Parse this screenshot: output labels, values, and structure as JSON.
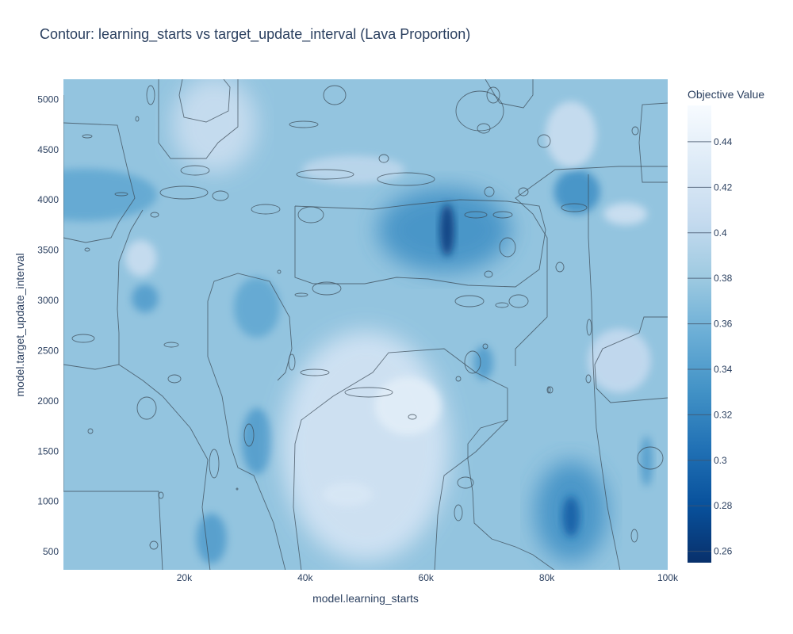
{
  "chart_data": {
    "type": "contour",
    "title": "Contour: learning_starts vs target_update_interval (Lava Proportion)",
    "xlabel": "model.learning_starts",
    "ylabel": "model.target_update_interval",
    "xlim": [
      0,
      100000
    ],
    "ylim": [
      320,
      5200
    ],
    "x_ticks": [
      {
        "value": 20000,
        "label": "20k"
      },
      {
        "value": 40000,
        "label": "40k"
      },
      {
        "value": 60000,
        "label": "60k"
      },
      {
        "value": 80000,
        "label": "80k"
      },
      {
        "value": 100000,
        "label": "100k"
      }
    ],
    "y_ticks": [
      {
        "value": 500,
        "label": "500"
      },
      {
        "value": 1000,
        "label": "1000"
      },
      {
        "value": 1500,
        "label": "1500"
      },
      {
        "value": 2000,
        "label": "2000"
      },
      {
        "value": 2500,
        "label": "2500"
      },
      {
        "value": 3000,
        "label": "3000"
      },
      {
        "value": 3500,
        "label": "3500"
      },
      {
        "value": 4000,
        "label": "4000"
      },
      {
        "value": 4500,
        "label": "4500"
      },
      {
        "value": 5000,
        "label": "5000"
      }
    ],
    "colorbar": {
      "title": "Objective Value",
      "range": [
        0.255,
        0.456
      ],
      "ticks": [
        0.26,
        0.28,
        0.3,
        0.32,
        0.34,
        0.36,
        0.38,
        0.4,
        0.42,
        0.44
      ],
      "tick_labels": [
        "0.26",
        "0.28",
        "0.3",
        "0.32",
        "0.34",
        "0.36",
        "0.38",
        "0.4",
        "0.42",
        "0.44"
      ],
      "colorscale": [
        "#08306b",
        "#08519c",
        "#2171b5",
        "#4292c6",
        "#6baed6",
        "#9ecae1",
        "#c6dbef",
        "#deebf7",
        "#f7fbff"
      ]
    },
    "background_value": 0.375,
    "regions": [
      {
        "cx": 63000,
        "cy": 3700,
        "rx": 11000,
        "ry": 420,
        "value": 0.33
      },
      {
        "cx": 63500,
        "cy": 3700,
        "rx": 1200,
        "ry": 260,
        "value": 0.265
      },
      {
        "cx": 84000,
        "cy": 900,
        "rx": 6000,
        "ry": 500,
        "value": 0.33
      },
      {
        "cx": 84000,
        "cy": 850,
        "rx": 1400,
        "ry": 200,
        "value": 0.29
      },
      {
        "cx": 85000,
        "cy": 4080,
        "rx": 3800,
        "ry": 220,
        "value": 0.33
      },
      {
        "cx": 3500,
        "cy": 4050,
        "rx": 12000,
        "ry": 260,
        "value": 0.35
      },
      {
        "cx": 32000,
        "cy": 1600,
        "rx": 2500,
        "ry": 330,
        "value": 0.34
      },
      {
        "cx": 24500,
        "cy": 630,
        "rx": 2500,
        "ry": 250,
        "value": 0.34
      },
      {
        "cx": 32000,
        "cy": 2930,
        "rx": 3800,
        "ry": 300,
        "value": 0.35
      },
      {
        "cx": 13500,
        "cy": 3020,
        "rx": 2200,
        "ry": 140,
        "value": 0.34
      },
      {
        "cx": 69500,
        "cy": 2380,
        "rx": 1600,
        "ry": 170,
        "value": 0.34
      },
      {
        "cx": 96500,
        "cy": 1400,
        "rx": 1000,
        "ry": 250,
        "value": 0.34
      },
      {
        "cx": 50000,
        "cy": 1550,
        "rx": 14000,
        "ry": 1150,
        "value": 0.42
      },
      {
        "cx": 57000,
        "cy": 1950,
        "rx": 5500,
        "ry": 290,
        "value": 0.435
      },
      {
        "cx": 25000,
        "cy": 4750,
        "rx": 7000,
        "ry": 480,
        "value": 0.41
      },
      {
        "cx": 84000,
        "cy": 4650,
        "rx": 4200,
        "ry": 330,
        "value": 0.41
      },
      {
        "cx": 92000,
        "cy": 2400,
        "rx": 5200,
        "ry": 320,
        "value": 0.405
      },
      {
        "cx": 48000,
        "cy": 4300,
        "rx": 8500,
        "ry": 140,
        "value": 0.4
      },
      {
        "cx": 12800,
        "cy": 3420,
        "rx": 2600,
        "ry": 180,
        "value": 0.41
      },
      {
        "cx": 47000,
        "cy": 1070,
        "rx": 4200,
        "ry": 120,
        "value": 0.425
      },
      {
        "cx": 93000,
        "cy": 3860,
        "rx": 3600,
        "ry": 110,
        "value": 0.415
      }
    ],
    "contour_paths": [
      "M 80 120 L 80 620 L 200 620 L 205 720",
      "M 80 155 L 148 158 L 160 210 L 170 250 L 150 280 L 140 300 L 108 306 L 80 300",
      "M 200 100 L 200 180 L 215 200 L 260 200 L 275 180 L 300 160 L 300 100",
      "M 265 720 L 255 640 L 262 580 L 240 540 L 205 500 L 180 480 L 150 460 L 150 420 L 148 390 L 150 330 L 165 290 L 180 265",
      "M 360 720 L 345 660 L 320 600 L 300 590 L 290 560 L 280 500 L 262 450 L 262 380 L 270 355 L 300 345 L 340 355 L 365 400 L 368 440 L 360 470 L 350 480",
      "M 380 720 L 370 640 L 372 560 L 380 530 L 420 500 L 470 470 L 490 445 L 560 440 L 600 470 L 640 490 L 640 530 L 600 570 L 560 600 L 552 650 L 548 720",
      "M 372 260 L 372 350 L 395 358 L 460 358 L 500 350 L 540 352 L 590 360 L 650 362 L 680 340 L 688 290 L 680 260 L 640 254 L 580 252 L 520 258 L 470 264 L 420 262 L 372 260",
      "M 742 220 L 742 300 L 746 380 L 748 460 L 752 540 L 766 640 L 782 720",
      "M 842 130 L 810 132 L 806 180 L 810 230 L 842 230",
      "M 842 400 L 812 400 L 806 420 L 760 440 L 750 460 L 752 490 L 770 508 L 842 502",
      "M 700 720 L 672 700 L 650 690 L 620 680 L 598 660 L 596 620 L 590 580 L 590 560 L 606 540 L 640 530",
      "M 80 460 L 120 466 L 150 460",
      "M 612 100 L 630 130 L 660 136 L 672 120 L 672 100",
      "M 650 462 L 650 440 L 670 420 L 690 400 L 690 340 L 690 300 L 672 270 L 650 250 L 700 214 L 742 212 L 780 210 L 842 210",
      "M 230 100 L 226 120 L 232 148 L 260 154 L 288 140 L 290 110 L 282 100"
    ],
    "small_loops": [
      [
        465,
        495,
        30,
        6
      ],
      [
        605,
        140,
        30,
        25
      ],
      [
        190,
        120,
        5,
        12
      ],
      [
        422,
        120,
        14,
        12
      ],
      [
        622,
        120,
        8,
        10
      ],
      [
        686,
        178,
        8,
        8
      ],
      [
        610,
        162,
        8,
        6
      ],
      [
        383,
        157,
        18,
        4
      ],
      [
        410,
        220,
        36,
        6
      ],
      [
        512,
        226,
        36,
        8
      ],
      [
        484,
        200,
        6,
        5
      ],
      [
        246,
        215,
        18,
        6
      ],
      [
        232,
        243,
        30,
        8
      ],
      [
        278,
        247,
        10,
        6
      ],
      [
        335,
        264,
        18,
        6
      ],
      [
        392,
        271,
        16,
        10
      ],
      [
        600,
        271,
        14,
        4
      ],
      [
        634,
        271,
        12,
        4
      ],
      [
        617,
        242,
        6,
        6
      ],
      [
        660,
        242,
        6,
        5
      ],
      [
        724,
        262,
        16,
        5
      ],
      [
        640,
        312,
        10,
        12
      ],
      [
        616,
        346,
        5,
        4
      ],
      [
        412,
        364,
        18,
        8
      ],
      [
        592,
        380,
        18,
        7
      ],
      [
        633,
        385,
        8,
        3
      ],
      [
        654,
        380,
        12,
        8
      ],
      [
        706,
        337,
        5,
        6
      ],
      [
        743,
        413,
        3,
        10
      ],
      [
        801,
        165,
        4,
        5
      ],
      [
        596,
        457,
        10,
        14
      ],
      [
        578,
        478,
        3,
        3
      ],
      [
        694,
        492,
        3,
        4
      ],
      [
        742,
        478,
        3,
        5
      ],
      [
        185,
        515,
        12,
        14
      ],
      [
        220,
        478,
        8,
        5
      ],
      [
        397,
        470,
        18,
        4
      ],
      [
        368,
        457,
        4,
        10
      ],
      [
        520,
        526,
        5,
        3
      ],
      [
        114,
        544,
        3,
        3
      ],
      [
        270,
        585,
        6,
        18
      ],
      [
        314,
        549,
        6,
        14
      ],
      [
        194,
        688,
        5,
        5
      ],
      [
        587,
        609,
        10,
        7
      ],
      [
        578,
        647,
        5,
        10
      ],
      [
        800,
        676,
        4,
        8
      ],
      [
        820,
        578,
        16,
        14
      ],
      [
        299,
        617,
        1,
        1
      ],
      [
        203,
        625,
        3,
        4
      ],
      [
        216,
        435,
        9,
        3
      ],
      [
        105,
        427,
        14,
        5
      ],
      [
        110,
        315,
        3,
        2
      ],
      [
        173,
        150,
        2,
        3
      ],
      [
        110,
        172,
        6,
        2
      ],
      [
        153,
        245,
        8,
        2
      ],
      [
        195,
        271,
        5,
        3
      ],
      [
        352,
        343,
        2,
        2
      ],
      [
        380,
        372,
        8,
        2
      ],
      [
        692,
        492,
        2,
        4
      ],
      [
        612,
        437,
        3,
        3
      ]
    ]
  }
}
